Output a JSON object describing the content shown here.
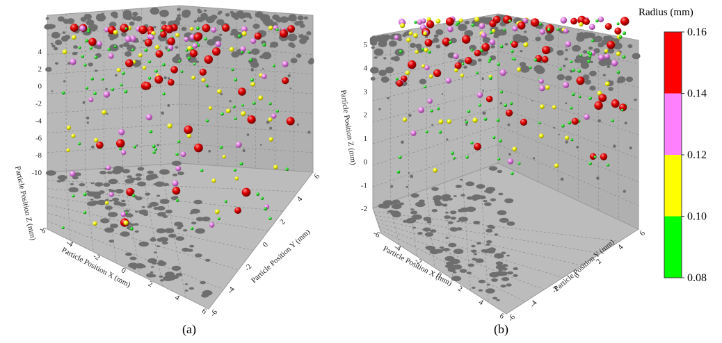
{
  "chart_data": [
    {
      "panel": "a",
      "type": "scatter3d",
      "caption": "(a)",
      "xlabel": "Particle Position X (mm)",
      "ylabel": "Particle Position Y (mm)",
      "zlabel": "Particle Position Z (mm)",
      "xticks": [
        "-6",
        "-4",
        "-2",
        "0",
        "2",
        "4",
        "6"
      ],
      "yticks": [
        "6",
        "4",
        "2",
        "0",
        "-2",
        "-4",
        "-6"
      ],
      "zticks": [
        "4",
        "2",
        "0",
        "-2",
        "-4",
        "-6",
        "-8",
        "-10"
      ],
      "zlim": [
        -10,
        5
      ],
      "points_description_only": false,
      "clusters": [
        {
          "radius_mm": 0.15,
          "color_class": "0.14-0.16",
          "approx_count": 45
        },
        {
          "radius_mm": 0.13,
          "color_class": "0.12-0.14",
          "approx_count": 40
        },
        {
          "radius_mm": 0.11,
          "color_class": "0.10-0.12",
          "approx_count": 45
        },
        {
          "radius_mm": 0.09,
          "color_class": "0.08-0.10",
          "approx_count": 90
        }
      ]
    },
    {
      "panel": "b",
      "type": "scatter3d",
      "caption": "(b)",
      "xlabel": "Particle Position X (mm)",
      "ylabel": "Particle Position Y (mm)",
      "zlabel": "Particle Position Z (mm)",
      "xticks": [
        "-6",
        "-4",
        "-2",
        "0",
        "2",
        "4",
        "6"
      ],
      "yticks": [
        "6",
        "4",
        "2",
        "0",
        "-2",
        "-4",
        "-6"
      ],
      "zticks": [
        "5",
        "4",
        "3",
        "2",
        "1",
        "0",
        "-1",
        "-2"
      ],
      "zlim": [
        -2,
        5
      ],
      "clusters": [
        {
          "radius_mm": 0.15,
          "color_class": "0.14-0.16",
          "approx_count": 45
        },
        {
          "radius_mm": 0.13,
          "color_class": "0.12-0.14",
          "approx_count": 35
        },
        {
          "radius_mm": 0.11,
          "color_class": "0.10-0.12",
          "approx_count": 40
        },
        {
          "radius_mm": 0.09,
          "color_class": "0.08-0.10",
          "approx_count": 90
        }
      ]
    }
  ],
  "colorbar": {
    "title": "Radius (mm)",
    "ticks": [
      "0.16",
      "0.14",
      "0.12",
      "0.10",
      "0.08"
    ],
    "bands": [
      {
        "from": "0.14",
        "to": "0.16",
        "color": "#ff0000"
      },
      {
        "from": "0.12",
        "to": "0.14",
        "color": "#ff80ff"
      },
      {
        "from": "0.10",
        "to": "0.12",
        "color": "#ffff00"
      },
      {
        "from": "0.08",
        "to": "0.10",
        "color": "#00ff00"
      }
    ]
  },
  "colors": {
    "box_fill": "#b4b4b4",
    "shadow": "#6e6e6e",
    "grid": "#8a8a8a",
    "red": "#e00000",
    "pink": "#e080e0",
    "yellow": "#ffff00",
    "green": "#22dd22"
  }
}
